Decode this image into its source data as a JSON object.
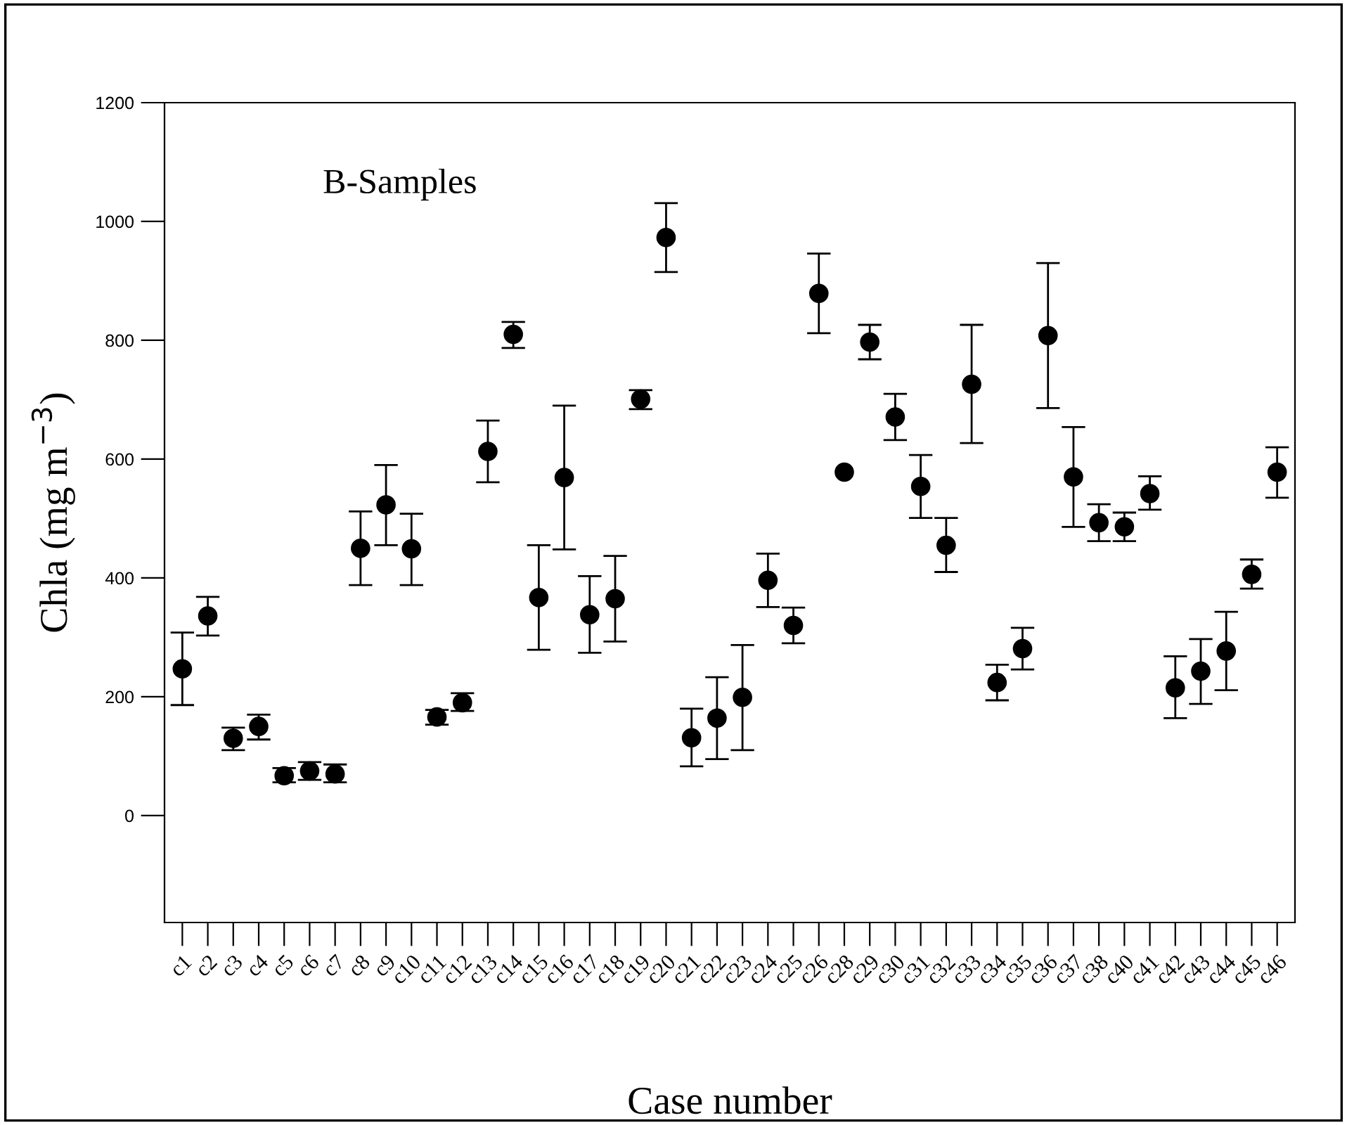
{
  "chart_data": {
    "type": "scatter",
    "xlabel": "Case number",
    "ylabel": "Chla (mg m$^{−3}$)",
    "annotations": [
      "B-Samples"
    ],
    "categories": [
      "c1",
      "c2",
      "c3",
      "c4",
      "c5",
      "c6",
      "c7",
      "c8",
      "c9",
      "c10",
      "c11",
      "c12",
      "c13",
      "c14",
      "c15",
      "c16",
      "c17",
      "c18",
      "c19",
      "c20",
      "c21",
      "c22",
      "c23",
      "c24",
      "c25",
      "c26",
      "c28",
      "c29",
      "c30",
      "c31",
      "c32",
      "c33",
      "c34",
      "c35",
      "c36",
      "c37",
      "c38",
      "c40",
      "c41",
      "c42",
      "c43",
      "c44",
      "c45",
      "c46"
    ],
    "series": [
      {
        "color": "#000000",
        "values": [
          247,
          336,
          130,
          150,
          67,
          75,
          70,
          450,
          523,
          449,
          166,
          190,
          613,
          810,
          367,
          569,
          338,
          365,
          701,
          973,
          131,
          164,
          199,
          396,
          320,
          879,
          578,
          797,
          671,
          554,
          455,
          726,
          224,
          281,
          808,
          570,
          493,
          486,
          542,
          215,
          243,
          277,
          406,
          578
        ],
        "errors": [
          [
            186,
            308
          ],
          [
            303,
            368
          ],
          [
            110,
            148
          ],
          [
            128,
            170
          ],
          [
            56,
            80
          ],
          [
            60,
            90
          ],
          [
            56,
            86
          ],
          [
            388,
            512
          ],
          [
            455,
            590
          ],
          [
            388,
            508
          ],
          [
            153,
            178
          ],
          [
            176,
            206
          ],
          [
            561,
            665
          ],
          [
            787,
            831
          ],
          [
            279,
            455
          ],
          [
            448,
            690
          ],
          [
            274,
            403
          ],
          [
            293,
            437
          ],
          [
            684,
            716
          ],
          [
            915,
            1031
          ],
          [
            83,
            180
          ],
          [
            95,
            233
          ],
          [
            110,
            287
          ],
          [
            351,
            441
          ],
          [
            290,
            350
          ],
          [
            812,
            946
          ],
          null,
          [
            768,
            826
          ],
          [
            632,
            710
          ],
          [
            501,
            607
          ],
          [
            410,
            501
          ],
          [
            627,
            826
          ],
          [
            194,
            254
          ],
          [
            246,
            316
          ],
          [
            686,
            930
          ],
          [
            486,
            654
          ],
          [
            462,
            524
          ],
          [
            462,
            510
          ],
          [
            515,
            571
          ],
          [
            164,
            268
          ],
          [
            188,
            297
          ],
          [
            211,
            343
          ],
          [
            382,
            431
          ],
          [
            535,
            620
          ]
        ]
      }
    ],
    "ylim": [
      -180,
      1200
    ],
    "yticks": [
      0,
      200,
      400,
      600,
      800,
      1000,
      1200
    ],
    "marker": "circle",
    "grid": false,
    "legend": false
  }
}
